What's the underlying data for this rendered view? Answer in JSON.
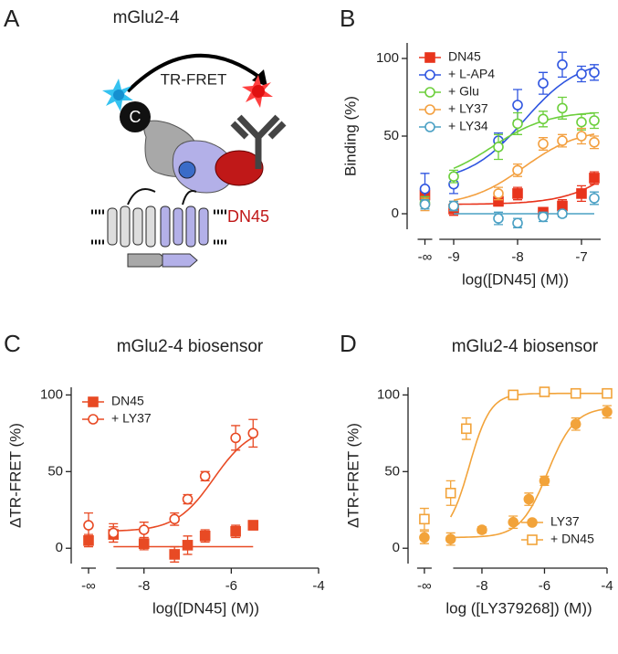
{
  "panel_labels": [
    "A",
    "B",
    "C",
    "D"
  ],
  "diagram": {
    "title": "mGlu2-4",
    "signal": "TR-FRET",
    "donor": "C",
    "antibody": "DN45"
  },
  "chart_data": [
    {
      "type": "line",
      "xlabel": "log([DN45] (M))",
      "ylabel": "Binding (%)",
      "legend": "upper left",
      "xlim": [
        -9.6,
        -6.7
      ],
      "ylim": [
        -10,
        110
      ],
      "xticks": [
        {
          "value": -9.45,
          "label": "-∞"
        },
        -9,
        -8,
        -7
      ],
      "yticks": [
        0,
        50,
        100
      ],
      "series": [
        {
          "name": "DN45",
          "color": "#e8341c",
          "marker": "square",
          "filled": true,
          "x": [
            -9.45,
            -9,
            -8.3,
            -8,
            -7.6,
            -7.3,
            -7,
            -6.8
          ],
          "values": [
            12,
            3,
            8,
            13,
            1,
            5,
            13,
            23
          ],
          "errors": [
            5,
            4,
            3,
            4,
            3,
            4,
            5,
            4
          ],
          "fit": {
            "bottom": 6,
            "top": 60,
            "logec50": -6.3,
            "hill": 1
          }
        },
        {
          "name": "+ L-AP4",
          "color": "#2f55e0",
          "marker": "circle",
          "filled": false,
          "x": [
            -9.45,
            -9,
            -8.3,
            -8,
            -7.6,
            -7.3,
            -7,
            -6.8
          ],
          "values": [
            16,
            19,
            47,
            70,
            84,
            96,
            90,
            91
          ],
          "errors": [
            10,
            6,
            5,
            10,
            7,
            8,
            5,
            5
          ],
          "fit": {
            "bottom": 20,
            "top": 100,
            "logec50": -7.9,
            "hill": 1
          }
        },
        {
          "name": "+ Glu",
          "color": "#6ccf3c",
          "marker": "circle",
          "filled": false,
          "x": [
            -9.45,
            -9,
            -8.3,
            -8,
            -7.6,
            -7.3,
            -7,
            -6.8
          ],
          "values": [
            7,
            24,
            43,
            58,
            61,
            68,
            59,
            60
          ],
          "errors": [
            4,
            4,
            8,
            7,
            5,
            7,
            5,
            5
          ],
          "fit": {
            "bottom": 20,
            "top": 66,
            "logec50": -8.4,
            "hill": 1
          }
        },
        {
          "name": "+ LY37",
          "color": "#f3a040",
          "marker": "circle",
          "filled": false,
          "x": [
            -9.45,
            -9,
            -8.3,
            -8,
            -7.6,
            -7.3,
            -7,
            -6.8
          ],
          "values": [
            6,
            5,
            13,
            28,
            45,
            47,
            50,
            46
          ],
          "errors": [
            4,
            3,
            4,
            4,
            4,
            4,
            5,
            4
          ],
          "fit": {
            "bottom": 5,
            "top": 55,
            "logec50": -7.9,
            "hill": 1
          }
        },
        {
          "name": "+ LY34",
          "color": "#4aa0c4",
          "marker": "circle",
          "filled": false,
          "x": [
            -9.45,
            -9,
            -8.3,
            -8,
            -7.6,
            -7.3,
            -6.8
          ],
          "values": [
            6,
            5,
            -3,
            -6,
            -2,
            0,
            10
          ],
          "errors": [
            3,
            3,
            4,
            3,
            3,
            2,
            4
          ],
          "fit": {
            "bottom": 0,
            "top": 0,
            "logec50": -7,
            "hill": 1
          }
        }
      ]
    },
    {
      "type": "line",
      "title": "mGlu2-4 biosensor",
      "xlabel": "log([DN45] (M))",
      "ylabel": "ΔTR-FRET (%)",
      "legend": "upper left",
      "xlim": [
        -9.5,
        -4
      ],
      "ylim": [
        -10,
        105
      ],
      "xticks": [
        {
          "value": -9.27,
          "label": "-∞"
        },
        -8,
        -6,
        -4
      ],
      "yticks": [
        0,
        50,
        100
      ],
      "series": [
        {
          "name": "DN45",
          "color": "#e84a24",
          "marker": "square",
          "filled": true,
          "x": [
            -9.27,
            -8.7,
            -8,
            -7.3,
            -7,
            -6.6,
            -5.9,
            -5.5
          ],
          "values": [
            5,
            9,
            3,
            -4,
            2,
            8,
            11,
            15
          ],
          "errors": [
            4,
            5,
            4,
            5,
            6,
            4,
            4,
            3
          ],
          "fit": {
            "bottom": 1,
            "top": 1,
            "logec50": -6,
            "hill": 1
          }
        },
        {
          "name": "+ LY37",
          "color": "#e84a24",
          "marker": "circle",
          "filled": false,
          "x": [
            -9.27,
            -8.7,
            -8,
            -7.3,
            -7,
            -6.6,
            -5.9,
            -5.5
          ],
          "values": [
            15,
            10,
            12,
            19,
            32,
            47,
            72,
            75
          ],
          "errors": [
            8,
            6,
            5,
            4,
            3,
            3,
            8,
            9
          ],
          "fit": {
            "bottom": 11,
            "top": 80,
            "logec50": -6.4,
            "hill": 1
          }
        }
      ]
    },
    {
      "type": "line",
      "title": "mGlu2-4 biosensor",
      "xlabel": "log ([LY379268]) (M))",
      "ylabel": "ΔTR-FRET (%)",
      "legend": "lower right",
      "xlim": [
        -10.1,
        -4
      ],
      "ylim": [
        -10,
        105
      ],
      "xticks": [
        {
          "value": -9.84,
          "label": "-∞"
        },
        -8,
        -6,
        -4
      ],
      "yticks": [
        0,
        50,
        100
      ],
      "series": [
        {
          "name": "LY37",
          "color": "#f2a33a",
          "marker": "circle",
          "filled": true,
          "x": [
            -9.84,
            -9,
            -8,
            -7,
            -6.5,
            -6,
            -5,
            -4
          ],
          "values": [
            7,
            6,
            12,
            17,
            32,
            44,
            81,
            89
          ],
          "errors": [
            4,
            4,
            2,
            4,
            4,
            3,
            4,
            4
          ],
          "fit": {
            "bottom": 7,
            "top": 92,
            "logec50": -5.9,
            "hill": 1
          }
        },
        {
          "name": "+ DN45",
          "color": "#f2a33a",
          "marker": "square",
          "filled": false,
          "x": [
            -9.84,
            -9,
            -8.5,
            -7,
            -6,
            -5,
            -4
          ],
          "values": [
            19,
            36,
            78,
            100,
            102,
            101,
            101
          ],
          "errors": [
            7,
            8,
            7,
            3,
            2,
            2,
            2
          ],
          "fit": {
            "bottom": 7,
            "top": 101,
            "logec50": -8.4,
            "hill": 1.3
          }
        }
      ]
    }
  ]
}
